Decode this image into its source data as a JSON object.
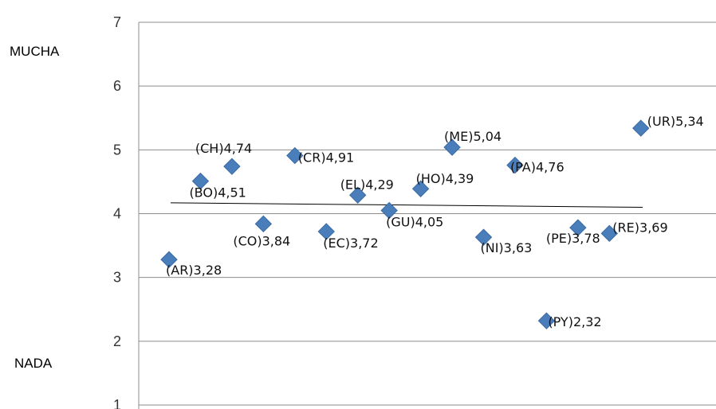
{
  "labels": {
    "top": "MUCHA",
    "bottom": "NADA"
  },
  "colors": {
    "marker": "#4a7ebb",
    "marker_stroke": "#3a6aa5",
    "grid": "#8c8c8c",
    "trend": "#000000"
  },
  "chart_data": {
    "type": "scatter",
    "ylim": [
      1,
      7
    ],
    "yticks": [
      "1",
      "2",
      "3",
      "4",
      "5",
      "6",
      "7"
    ],
    "grid": true,
    "points": [
      {
        "x": 1,
        "y": 3.28,
        "label": "(AR)3,28"
      },
      {
        "x": 2,
        "y": 4.51,
        "label": "(BO)4,51"
      },
      {
        "x": 3,
        "y": 4.74,
        "label": "(CH)4,74"
      },
      {
        "x": 4,
        "y": 3.84,
        "label": "(CO)3,84"
      },
      {
        "x": 5,
        "y": 4.91,
        "label": "(CR)4,91"
      },
      {
        "x": 6,
        "y": 3.72,
        "label": "(EC)3,72"
      },
      {
        "x": 7,
        "y": 4.29,
        "label": "(EL)4,29"
      },
      {
        "x": 8,
        "y": 4.05,
        "label": "(GU)4,05"
      },
      {
        "x": 9,
        "y": 4.39,
        "label": "(HO)4,39"
      },
      {
        "x": 10,
        "y": 5.04,
        "label": "(ME)5,04"
      },
      {
        "x": 11,
        "y": 3.63,
        "label": "(NI)3,63"
      },
      {
        "x": 12,
        "y": 4.76,
        "label": "(PA)4,76"
      },
      {
        "x": 13,
        "y": 2.32,
        "label": "(PY)2,32"
      },
      {
        "x": 14,
        "y": 3.78,
        "label": "(PE)3,78"
      },
      {
        "x": 15,
        "y": 3.69,
        "label": "(RE)3,69"
      },
      {
        "x": 16,
        "y": 5.34,
        "label": "(UR)5,34"
      }
    ],
    "trendline": {
      "y_start": 4.17,
      "y_end": 4.1
    }
  }
}
